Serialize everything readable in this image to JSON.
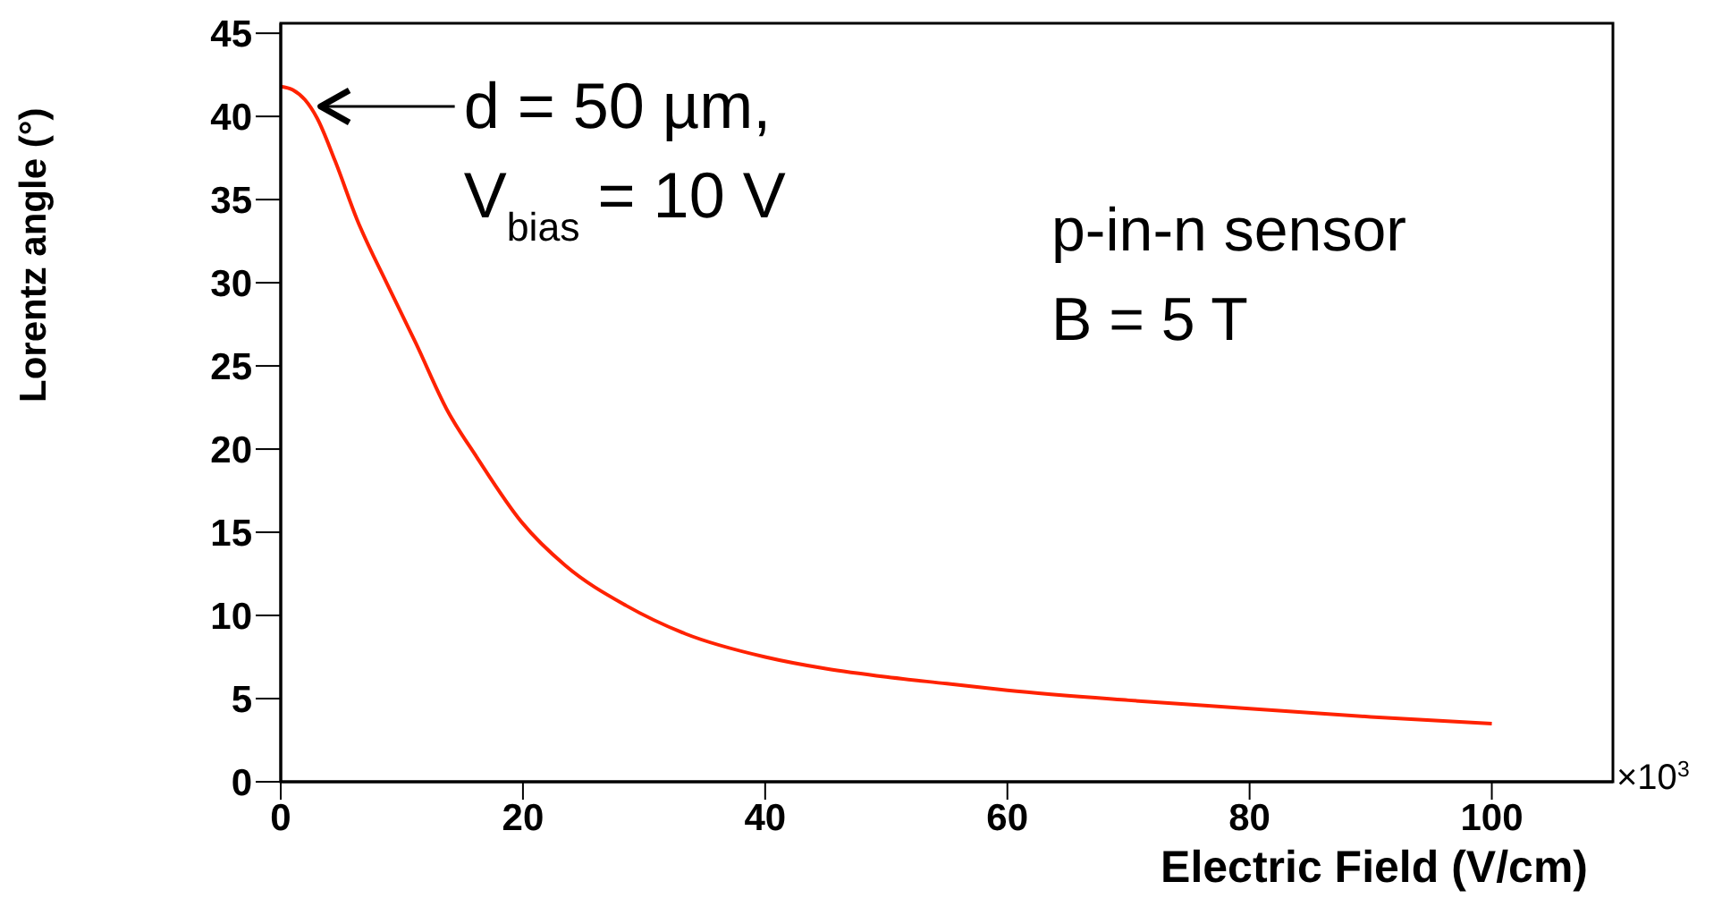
{
  "chart_data": {
    "type": "line",
    "xlabel": "Electric Field (V/cm)",
    "ylabel": "Lorentz angle (°)",
    "x": [
      0,
      1,
      2,
      3,
      4.5,
      6.3,
      8.8,
      11.2,
      13.7,
      16.2,
      19.9,
      23.5,
      28.5,
      33.4,
      40,
      45,
      50,
      55,
      60,
      70,
      80,
      90,
      100
    ],
    "series": [
      {
        "color": "#ff2200",
        "values": [
          41.8,
          41.6,
          41.0,
          39.9,
          37.3,
          33.8,
          29.9,
          26.3,
          22.4,
          19.5,
          15.6,
          13.0,
          10.6,
          8.9,
          7.5,
          6.8,
          6.3,
          5.9,
          5.5,
          4.9,
          4.4,
          3.9,
          3.5
        ]
      }
    ],
    "xlim": [
      0,
      110
    ],
    "xticks": [
      0,
      20,
      40,
      60,
      80,
      100
    ],
    "ylim": [
      0,
      45.6
    ],
    "yticks": [
      0,
      5,
      10,
      15,
      20,
      25,
      30,
      35,
      40,
      45
    ],
    "marker": "none",
    "line_style": "solid",
    "annotations": [
      {
        "text": "d = 50 µm,\nV$_{bias}$ = 10 V",
        "x": 3,
        "y": 40.6
      },
      "p-in-n sensor\nB = 5 T",
      "×10$^{3}$"
    ]
  }
}
